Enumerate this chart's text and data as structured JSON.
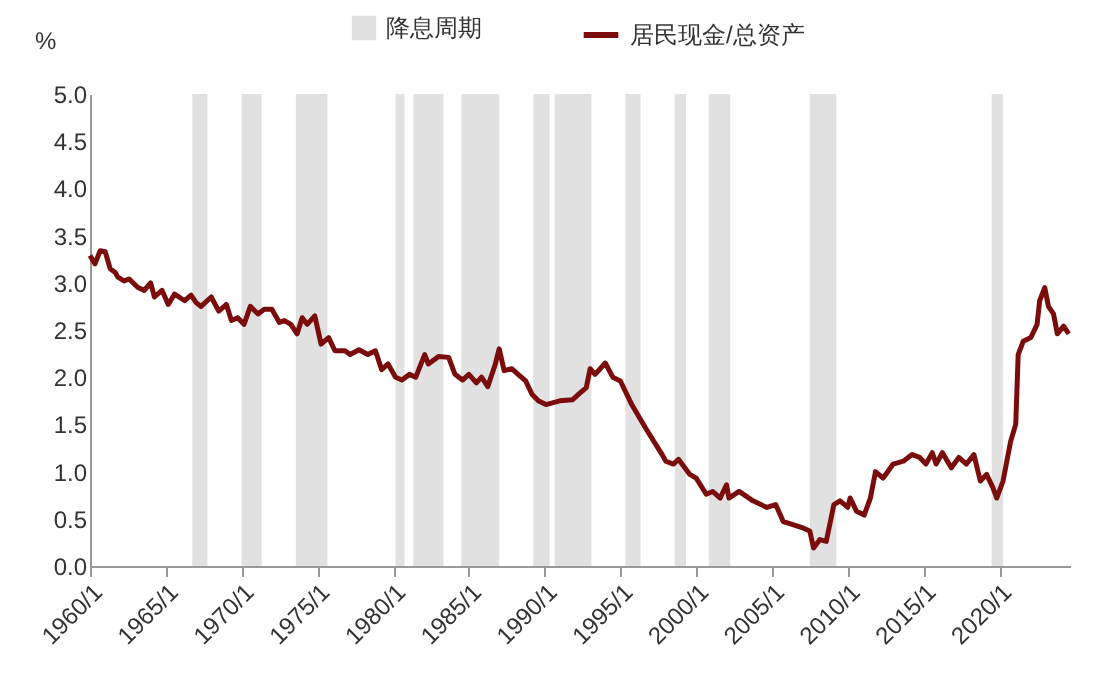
{
  "chart_data": {
    "type": "line",
    "ylabel": "%",
    "x": [
      "1960-01",
      "1960-05",
      "1960-09",
      "1961-01",
      "1961-05",
      "1961-09",
      "1961-11",
      "1962-04",
      "1962-08",
      "1963-03",
      "1963-08",
      "1964-01",
      "1964-04",
      "1964-10",
      "1965-03",
      "1965-08",
      "1966-04",
      "1966-09",
      "1967-01",
      "1967-05",
      "1968-01",
      "1968-07",
      "1969-01",
      "1969-05",
      "1969-10",
      "1970-03",
      "1970-08",
      "1971-02",
      "1971-07",
      "1972-01",
      "1972-07",
      "1972-11",
      "1973-04",
      "1973-09",
      "1974-01",
      "1974-05",
      "1974-11",
      "1975-04",
      "1975-10",
      "1976-03",
      "1976-11",
      "1977-03",
      "1977-10",
      "1978-05",
      "1978-11",
      "1979-04",
      "1979-09",
      "1980-03",
      "1980-08",
      "1981-02",
      "1981-07",
      "1982-02",
      "1982-05",
      "1983-01",
      "1983-09",
      "1984-02",
      "1984-08",
      "1985-01",
      "1985-07",
      "1985-11",
      "1986-04",
      "1986-10",
      "1987-01",
      "1987-05",
      "1987-11",
      "1988-04",
      "1988-10",
      "1989-03",
      "1989-08",
      "1990-02",
      "1991-01",
      "1991-11",
      "1992-04",
      "1992-10",
      "1993-01",
      "1993-05",
      "1994-01",
      "1994-07",
      "1995-01",
      "1995-10",
      "1996-09",
      "1997-10",
      "1998-01",
      "1998-07",
      "1998-11",
      "1999-08",
      "2000-01",
      "2000-09",
      "2001-02",
      "2001-08",
      "2002-01",
      "2002-03",
      "2002-11",
      "2003-10",
      "2004-09",
      "2005-04",
      "2005-10",
      "2006-05",
      "2007-02",
      "2007-07",
      "2007-10",
      "2008-03",
      "2008-08",
      "2009-02",
      "2009-07",
      "2010-01",
      "2010-03",
      "2010-08",
      "2011-02",
      "2011-07",
      "2011-11",
      "2012-05",
      "2013-01",
      "2013-09",
      "2014-04",
      "2014-10",
      "2015-03",
      "2015-08",
      "2015-11",
      "2016-04",
      "2016-11",
      "2017-05",
      "2017-11",
      "2018-05",
      "2018-10",
      "2019-03",
      "2019-08",
      "2019-11",
      "2020-04",
      "2020-10",
      "2021-02",
      "2021-04",
      "2021-08",
      "2022-02",
      "2022-07",
      "2022-09",
      "2023-01",
      "2023-04",
      "2023-08",
      "2023-11",
      "2024-04",
      "2024-08"
    ],
    "series": [
      {
        "name": "居民现金/总资产",
        "color": "#7b0c0c",
        "values": [
          3.29,
          3.2,
          3.34,
          3.33,
          3.15,
          3.11,
          3.06,
          3.02,
          3.04,
          2.95,
          2.92,
          3.0,
          2.85,
          2.92,
          2.77,
          2.88,
          2.81,
          2.87,
          2.79,
          2.75,
          2.85,
          2.7,
          2.77,
          2.6,
          2.63,
          2.56,
          2.75,
          2.67,
          2.72,
          2.72,
          2.58,
          2.6,
          2.56,
          2.46,
          2.63,
          2.56,
          2.65,
          2.35,
          2.42,
          2.28,
          2.28,
          2.24,
          2.29,
          2.24,
          2.28,
          2.08,
          2.14,
          2.0,
          1.97,
          2.03,
          2.0,
          2.24,
          2.14,
          2.22,
          2.21,
          2.03,
          1.97,
          2.03,
          1.94,
          2.0,
          1.9,
          2.14,
          2.3,
          2.07,
          2.09,
          2.03,
          1.96,
          1.82,
          1.75,
          1.71,
          1.75,
          1.76,
          1.82,
          1.89,
          2.09,
          2.03,
          2.15,
          2.0,
          1.96,
          1.71,
          1.46,
          1.18,
          1.11,
          1.08,
          1.13,
          0.97,
          0.93,
          0.76,
          0.79,
          0.72,
          0.86,
          0.72,
          0.79,
          0.69,
          0.62,
          0.65,
          0.47,
          0.44,
          0.4,
          0.37,
          0.19,
          0.28,
          0.26,
          0.65,
          0.69,
          0.62,
          0.72,
          0.58,
          0.54,
          0.72,
          1.0,
          0.93,
          1.08,
          1.11,
          1.18,
          1.15,
          1.08,
          1.2,
          1.08,
          1.2,
          1.04,
          1.15,
          1.08,
          1.18,
          0.9,
          0.97,
          0.83,
          0.72,
          0.9,
          1.32,
          1.5,
          2.24,
          2.38,
          2.42,
          2.56,
          2.81,
          2.95,
          2.75,
          2.67,
          2.46,
          2.54,
          2.46
        ]
      }
    ],
    "xlim": [
      "1960-01",
      "2024-09"
    ],
    "xticks": [
      {
        "value": "1960-01",
        "label": "1960/1"
      },
      {
        "value": "1965-01",
        "label": "1965/1"
      },
      {
        "value": "1970-01",
        "label": "1970/1"
      },
      {
        "value": "1975-01",
        "label": "1975/1"
      },
      {
        "value": "1980-01",
        "label": "1980/1"
      },
      {
        "value": "1985-01",
        "label": "1985/1"
      },
      {
        "value": "1990-01",
        "label": "1990/1"
      },
      {
        "value": "1995-01",
        "label": "1995/1"
      },
      {
        "value": "2000-01",
        "label": "2000/1"
      },
      {
        "value": "2005-01",
        "label": "2005/1"
      },
      {
        "value": "2010-01",
        "label": "2010/1"
      },
      {
        "value": "2015-01",
        "label": "2015/1"
      },
      {
        "value": "2020-01",
        "label": "2020/1"
      }
    ],
    "ylim": [
      0,
      5
    ],
    "yticks": [
      {
        "value": 0,
        "label": "0.0"
      },
      {
        "value": 0.5,
        "label": "0.5"
      },
      {
        "value": 1,
        "label": "1.0"
      },
      {
        "value": 1.5,
        "label": "1.5"
      },
      {
        "value": 2,
        "label": "2.0"
      },
      {
        "value": 2.5,
        "label": "2.5"
      },
      {
        "value": 3,
        "label": "3.0"
      },
      {
        "value": 3.5,
        "label": "3.5"
      },
      {
        "value": 4,
        "label": "4.0"
      },
      {
        "value": 4.5,
        "label": "4.5"
      },
      {
        "value": 5,
        "label": "5.0"
      }
    ],
    "bands": [
      {
        "axis": "x",
        "from": "1966-10",
        "to": "1967-10",
        "label": "降息周期",
        "color": "#e1e1e1"
      },
      {
        "axis": "x",
        "from": "1970-01",
        "to": "1971-05",
        "color": "#e1e1e1"
      },
      {
        "axis": "x",
        "from": "1973-08",
        "to": "1975-09",
        "color": "#e1e1e1"
      },
      {
        "axis": "x",
        "from": "1980-03",
        "to": "1980-10",
        "color": "#e1e1e1"
      },
      {
        "axis": "x",
        "from": "1981-05",
        "to": "1983-05",
        "color": "#e1e1e1"
      },
      {
        "axis": "x",
        "from": "1984-07",
        "to": "1987-01",
        "color": "#e1e1e1"
      },
      {
        "axis": "x",
        "from": "1989-04",
        "to": "1990-05",
        "color": "#e1e1e1"
      },
      {
        "axis": "x",
        "from": "1990-09",
        "to": "1993-02",
        "color": "#e1e1e1"
      },
      {
        "axis": "x",
        "from": "1995-05",
        "to": "1996-05",
        "color": "#e1e1e1"
      },
      {
        "axis": "x",
        "from": "1998-08",
        "to": "1999-05",
        "color": "#e1e1e1"
      },
      {
        "axis": "x",
        "from": "2000-11",
        "to": "2002-04",
        "color": "#e1e1e1"
      },
      {
        "axis": "x",
        "from": "2007-07",
        "to": "2009-04",
        "color": "#e1e1e1"
      },
      {
        "axis": "x",
        "from": "2019-07",
        "to": "2020-04",
        "color": "#e1e1e1"
      }
    ],
    "grid": false,
    "legend": "top",
    "line_style": "solid",
    "marker": "none"
  }
}
